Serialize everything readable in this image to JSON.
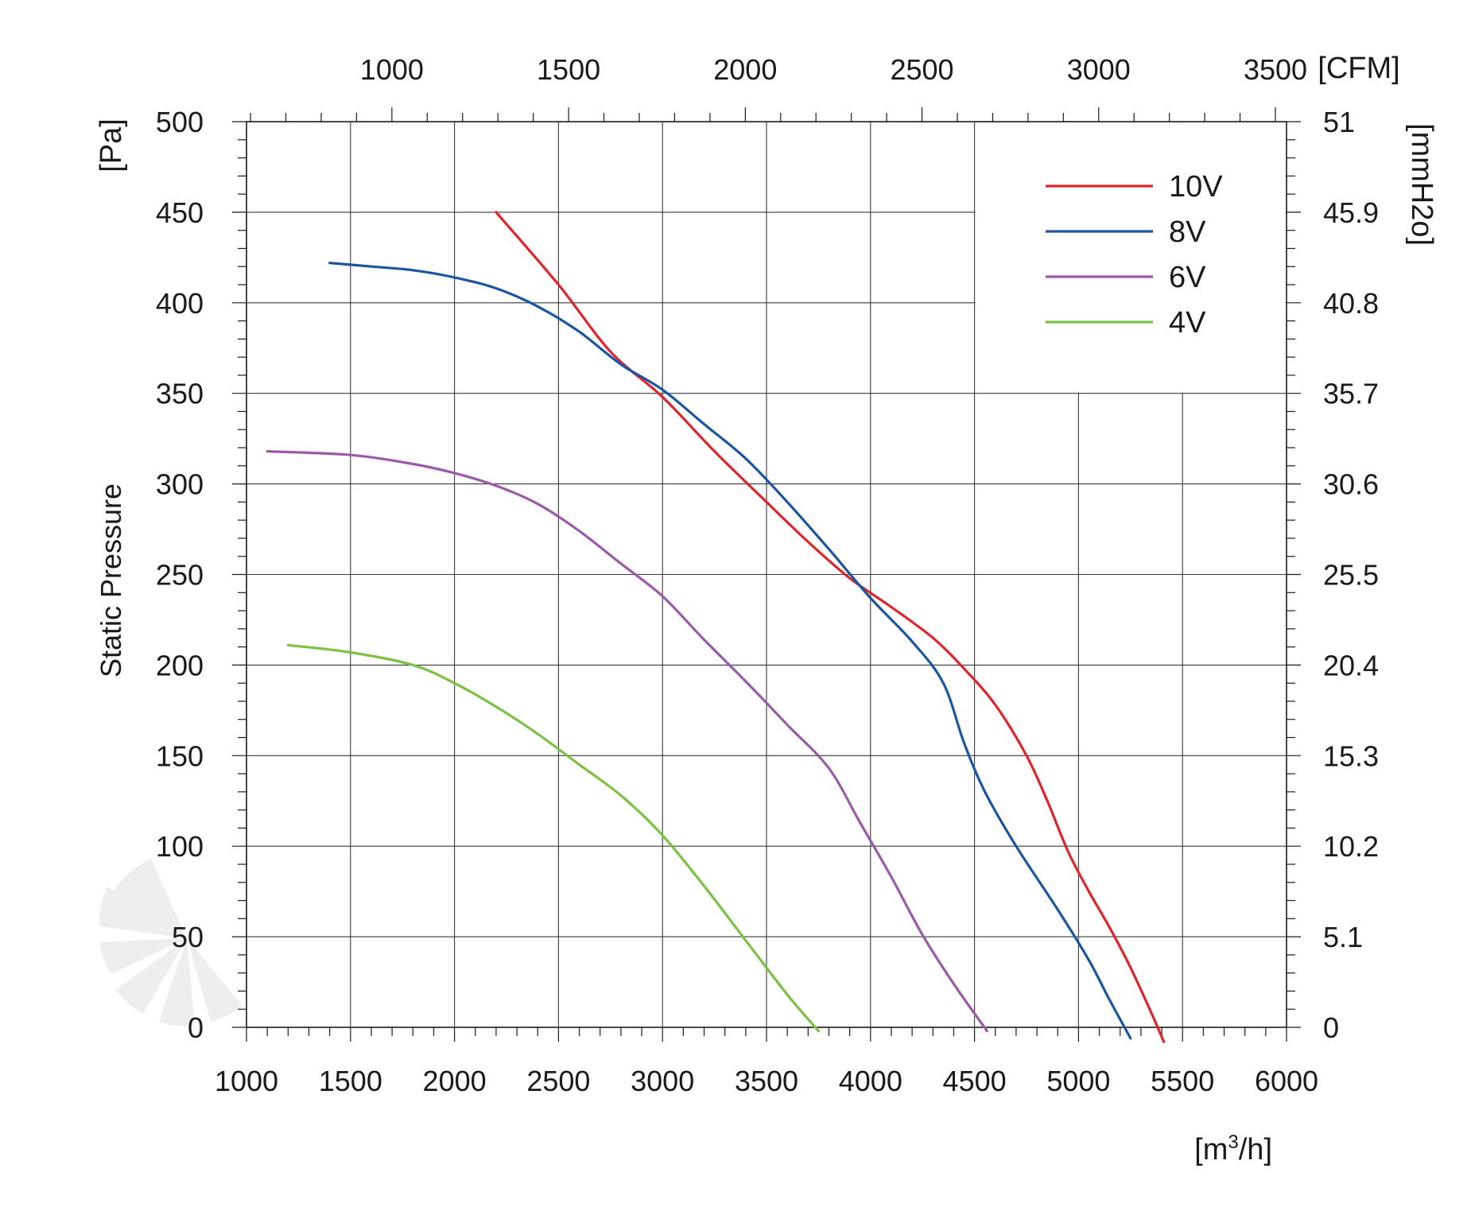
{
  "chart_data": {
    "type": "line",
    "title": "",
    "ylabel": "Static Pressure",
    "y_unit": "[Pa]",
    "x_unit": "[m³/h]",
    "x_unit_base": "[m",
    "x_unit_sup": "3",
    "x_unit_tail": "/h]",
    "top_axis_unit": "[CFM]",
    "right_axis_unit": "[mmH2o]",
    "xlim": [
      1000,
      6000
    ],
    "ylim": [
      0,
      500
    ],
    "x_ticks": [
      1000,
      1500,
      2000,
      2500,
      3000,
      3500,
      4000,
      4500,
      5000,
      5500,
      6000
    ],
    "y_ticks": [
      0,
      50,
      100,
      150,
      200,
      250,
      300,
      350,
      400,
      450,
      500
    ],
    "top_ticks_cfm": [
      1000,
      1500,
      2000,
      2500,
      3000,
      3500
    ],
    "right_ticks": [
      {
        "pa": 0,
        "label": "0"
      },
      {
        "pa": 50,
        "label": "5.1"
      },
      {
        "pa": 100,
        "label": "10.2"
      },
      {
        "pa": 150,
        "label": "15.3"
      },
      {
        "pa": 200,
        "label": "20.4"
      },
      {
        "pa": 250,
        "label": "25.5"
      },
      {
        "pa": 300,
        "label": "30.6"
      },
      {
        "pa": 350,
        "label": "35.7"
      },
      {
        "pa": 400,
        "label": "40.8"
      },
      {
        "pa": 450,
        "label": "45.9"
      },
      {
        "pa": 500,
        "label": "51"
      }
    ],
    "grid": true,
    "legend_position": "top-right",
    "series": [
      {
        "name": "10V",
        "color": "#e0242b",
        "points": [
          [
            2200,
            450
          ],
          [
            2500,
            410
          ],
          [
            2750,
            373
          ],
          [
            3000,
            348
          ],
          [
            3250,
            318
          ],
          [
            3500,
            290
          ],
          [
            3700,
            268
          ],
          [
            3900,
            248
          ],
          [
            4100,
            232
          ],
          [
            4300,
            215
          ],
          [
            4450,
            198
          ],
          [
            4600,
            178
          ],
          [
            4750,
            150
          ],
          [
            4850,
            125
          ],
          [
            4950,
            97
          ],
          [
            5050,
            75
          ],
          [
            5150,
            55
          ],
          [
            5250,
            33
          ],
          [
            5350,
            8
          ],
          [
            5410,
            -8
          ]
        ]
      },
      {
        "name": "8V",
        "color": "#1c55a0",
        "points": [
          [
            1400,
            422
          ],
          [
            1600,
            420
          ],
          [
            1800,
            418
          ],
          [
            2000,
            414
          ],
          [
            2200,
            408
          ],
          [
            2400,
            398
          ],
          [
            2600,
            384
          ],
          [
            2800,
            366
          ],
          [
            3000,
            352
          ],
          [
            3200,
            333
          ],
          [
            3400,
            314
          ],
          [
            3600,
            290
          ],
          [
            3800,
            264
          ],
          [
            4000,
            237
          ],
          [
            4200,
            213
          ],
          [
            4350,
            190
          ],
          [
            4450,
            157
          ],
          [
            4550,
            130
          ],
          [
            4700,
            100
          ],
          [
            4900,
            65
          ],
          [
            5050,
            37
          ],
          [
            5150,
            15
          ],
          [
            5250,
            -6
          ]
        ]
      },
      {
        "name": "6V",
        "color": "#9b5aa8",
        "points": [
          [
            1100,
            318
          ],
          [
            1500,
            316
          ],
          [
            1800,
            311
          ],
          [
            2000,
            306
          ],
          [
            2200,
            299
          ],
          [
            2400,
            289
          ],
          [
            2600,
            274
          ],
          [
            2800,
            256
          ],
          [
            3000,
            238
          ],
          [
            3200,
            214
          ],
          [
            3400,
            191
          ],
          [
            3600,
            167
          ],
          [
            3800,
            143
          ],
          [
            3950,
            113
          ],
          [
            4100,
            83
          ],
          [
            4250,
            51
          ],
          [
            4400,
            24
          ],
          [
            4560,
            -2
          ]
        ]
      },
      {
        "name": "4V",
        "color": "#7cc143",
        "points": [
          [
            1200,
            211
          ],
          [
            1500,
            207
          ],
          [
            1800,
            200
          ],
          [
            2000,
            190
          ],
          [
            2200,
            177
          ],
          [
            2400,
            162
          ],
          [
            2600,
            145
          ],
          [
            2800,
            128
          ],
          [
            3000,
            106
          ],
          [
            3200,
            78
          ],
          [
            3400,
            48
          ],
          [
            3600,
            18
          ],
          [
            3750,
            -2
          ]
        ]
      }
    ]
  }
}
